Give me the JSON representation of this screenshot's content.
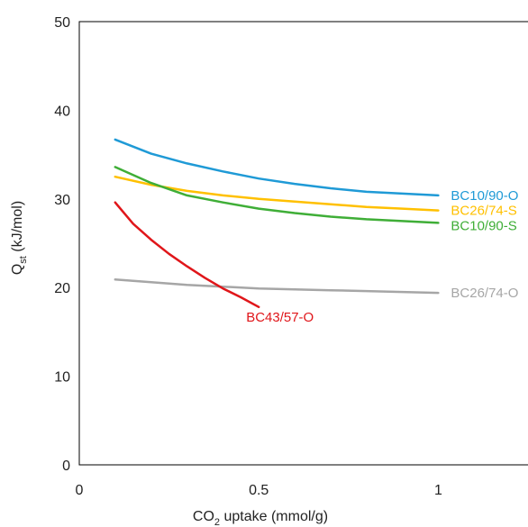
{
  "chart_data": {
    "type": "line",
    "xlabel": {
      "pre": "CO",
      "sub": "2",
      "post": " uptake (mmol/g)"
    },
    "ylabel": {
      "pre": "Q",
      "sub": "st",
      "post": " (kJ/mol)"
    },
    "xlim": [
      0,
      1.25
    ],
    "ylim": [
      0,
      50
    ],
    "x_ticks": [
      0,
      0.5,
      1
    ],
    "x_tick_labels": [
      "0",
      "0.5",
      "1"
    ],
    "y_ticks": [
      0,
      10,
      20,
      30,
      40,
      50
    ],
    "y_tick_labels": [
      "0",
      "10",
      "20",
      "30",
      "40",
      "50"
    ],
    "grid": false,
    "legend": "inline labels at line ends",
    "series": [
      {
        "name": "BC10/90-O",
        "color": "#1f9ad6",
        "x": [
          0.1,
          0.2,
          0.3,
          0.4,
          0.5,
          0.6,
          0.7,
          0.8,
          0.9,
          1.0
        ],
        "y": [
          36.7,
          35.1,
          34.0,
          33.1,
          32.3,
          31.7,
          31.2,
          30.8,
          30.6,
          30.4
        ]
      },
      {
        "name": "BC26/74-S",
        "color": "#ffc000",
        "x": [
          0.1,
          0.2,
          0.3,
          0.4,
          0.5,
          0.6,
          0.7,
          0.8,
          0.9,
          1.0
        ],
        "y": [
          32.5,
          31.6,
          30.9,
          30.4,
          30.0,
          29.7,
          29.4,
          29.1,
          28.9,
          28.7
        ]
      },
      {
        "name": "BC10/90-S",
        "color": "#3fae37",
        "x": [
          0.1,
          0.2,
          0.3,
          0.4,
          0.5,
          0.6,
          0.7,
          0.8,
          0.9,
          1.0
        ],
        "y": [
          33.6,
          31.8,
          30.4,
          29.6,
          28.9,
          28.4,
          28.0,
          27.7,
          27.5,
          27.3
        ]
      },
      {
        "name": "BC26/74-O",
        "color": "#a6a6a6",
        "x": [
          0.1,
          0.2,
          0.3,
          0.4,
          0.5,
          0.6,
          0.7,
          0.8,
          0.9,
          1.0
        ],
        "y": [
          20.9,
          20.6,
          20.3,
          20.1,
          19.9,
          19.8,
          19.7,
          19.6,
          19.5,
          19.4
        ]
      },
      {
        "name": "BC43/57-O",
        "color": "#e0161a",
        "x": [
          0.1,
          0.15,
          0.2,
          0.25,
          0.3,
          0.35,
          0.4,
          0.45,
          0.5
        ],
        "y": [
          29.6,
          27.2,
          25.4,
          23.8,
          22.4,
          21.1,
          19.9,
          18.9,
          17.8
        ]
      }
    ]
  }
}
